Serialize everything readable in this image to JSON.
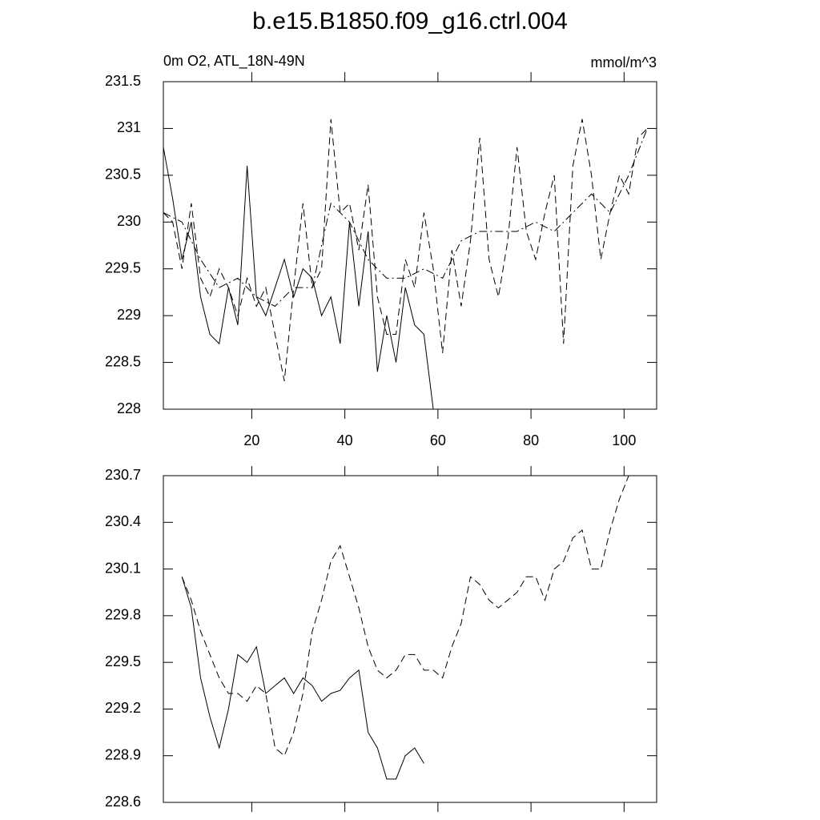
{
  "chart_data": [
    {
      "type": "line",
      "title": "b.e15.B1850.f09_g16.ctrl.004",
      "left_subtitle": "0m O2, ATL_18N-49N",
      "right_subtitle": "mmol/m^3",
      "xlim": [
        1,
        107
      ],
      "xticks": [
        20,
        40,
        60,
        80,
        100
      ],
      "xticklabels": true,
      "ylim": [
        228.0,
        231.5
      ],
      "yticks": [
        228.0,
        228.5,
        229.0,
        229.5,
        230.0,
        230.5,
        231.0,
        231.5
      ],
      "series": [
        {
          "color": "#000000",
          "dash": "solid",
          "x": [
            1,
            3,
            5,
            7,
            9,
            11,
            13,
            15,
            17,
            19,
            21,
            23,
            25,
            27,
            29,
            31,
            33,
            35,
            37,
            39,
            41,
            43,
            45,
            47,
            49,
            51,
            53,
            55,
            57,
            59
          ],
          "values": [
            230.8,
            230.25,
            229.6,
            230.0,
            229.2,
            228.8,
            228.7,
            229.3,
            228.9,
            230.6,
            229.2,
            229.0,
            229.3,
            229.6,
            229.2,
            229.5,
            229.4,
            229.0,
            229.2,
            228.7,
            230.0,
            229.1,
            229.9,
            228.4,
            229.0,
            228.5,
            229.3,
            228.9,
            228.8,
            228.0
          ]
        },
        {
          "color": "#000000",
          "dash": "dashed",
          "x": [
            1,
            3,
            5,
            7,
            9,
            11,
            13,
            15,
            17,
            19,
            21,
            23,
            25,
            27,
            29,
            31,
            33,
            35,
            37,
            39,
            41,
            43,
            45,
            47,
            49,
            51,
            53,
            55,
            57,
            59,
            61,
            63,
            65,
            67,
            69,
            71,
            73,
            75,
            77,
            79,
            81,
            83,
            85,
            87,
            89,
            91,
            93,
            95,
            97,
            99,
            101,
            103,
            105
          ],
          "values": [
            230.1,
            230.0,
            229.5,
            230.2,
            229.4,
            229.2,
            229.5,
            229.3,
            229.0,
            229.4,
            229.1,
            229.3,
            228.8,
            228.3,
            229.3,
            230.2,
            229.3,
            229.5,
            231.1,
            230.1,
            230.2,
            229.7,
            230.4,
            229.2,
            228.8,
            228.8,
            229.6,
            229.3,
            230.1,
            229.5,
            228.6,
            229.7,
            229.1,
            229.8,
            230.9,
            229.6,
            229.2,
            229.8,
            230.8,
            229.9,
            229.6,
            230.1,
            230.5,
            228.7,
            230.6,
            231.1,
            230.5,
            229.6,
            230.1,
            230.5,
            230.3,
            230.9,
            231.0
          ]
        },
        {
          "color": "#000000",
          "dash": "dashdot",
          "x": [
            1,
            5,
            9,
            13,
            17,
            21,
            25,
            29,
            33,
            37,
            41,
            45,
            49,
            53,
            57,
            61,
            65,
            69,
            73,
            77,
            81,
            85,
            89,
            93,
            97,
            101,
            105
          ],
          "values": [
            230.1,
            230.0,
            229.6,
            229.3,
            229.4,
            229.2,
            229.1,
            229.3,
            229.3,
            230.2,
            230.0,
            229.6,
            229.4,
            229.4,
            229.5,
            229.4,
            229.8,
            229.9,
            229.9,
            229.9,
            230.0,
            229.9,
            230.1,
            230.3,
            230.1,
            230.5,
            231.0
          ]
        }
      ]
    },
    {
      "type": "line",
      "xlim": [
        1,
        107
      ],
      "xticks": [
        20,
        40,
        60,
        80,
        100
      ],
      "xticklabels": false,
      "ylim": [
        228.6,
        230.7
      ],
      "yticks": [
        228.6,
        228.9,
        229.2,
        229.5,
        229.8,
        230.1,
        230.4,
        230.7
      ],
      "series": [
        {
          "color": "#000000",
          "dash": "solid",
          "x": [
            5,
            7,
            9,
            11,
            13,
            15,
            17,
            19,
            21,
            23,
            25,
            27,
            29,
            31,
            33,
            35,
            37,
            39,
            41,
            43,
            45,
            47,
            49,
            51,
            53,
            55,
            57
          ],
          "values": [
            230.05,
            229.85,
            229.4,
            229.15,
            228.95,
            229.2,
            229.55,
            229.5,
            229.6,
            229.3,
            229.35,
            229.4,
            229.3,
            229.4,
            229.35,
            229.25,
            229.3,
            229.32,
            229.4,
            229.45,
            229.05,
            228.95,
            228.75,
            228.75,
            228.9,
            228.95,
            228.85
          ]
        },
        {
          "color": "#000000",
          "dash": "dashed",
          "x": [
            5,
            7,
            9,
            11,
            13,
            15,
            17,
            19,
            21,
            23,
            25,
            27,
            29,
            31,
            33,
            35,
            37,
            39,
            41,
            43,
            45,
            47,
            49,
            51,
            53,
            55,
            57,
            59,
            61,
            63,
            65,
            67,
            69,
            71,
            73,
            75,
            77,
            79,
            81,
            83,
            85,
            87,
            89,
            91,
            93,
            95,
            97,
            99,
            101
          ],
          "values": [
            230.05,
            229.9,
            229.7,
            229.55,
            229.4,
            229.3,
            229.3,
            229.25,
            229.35,
            229.3,
            228.95,
            228.9,
            229.05,
            229.3,
            229.7,
            229.9,
            230.15,
            230.25,
            230.05,
            229.85,
            229.6,
            229.45,
            229.4,
            229.45,
            229.55,
            229.55,
            229.45,
            229.45,
            229.4,
            229.6,
            229.75,
            230.05,
            230.0,
            229.9,
            229.85,
            229.9,
            229.95,
            230.05,
            230.05,
            229.9,
            230.1,
            230.15,
            230.3,
            230.35,
            230.1,
            230.1,
            230.35,
            230.55,
            230.7
          ]
        }
      ]
    }
  ]
}
